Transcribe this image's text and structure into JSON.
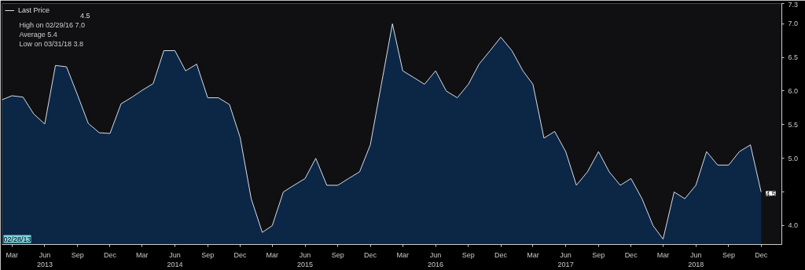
{
  "chart_data": {
    "type": "area",
    "x": [
      "2013-02",
      "2013-03",
      "2013-04",
      "2013-05",
      "2013-06",
      "2013-07",
      "2013-08",
      "2013-09",
      "2013-10",
      "2013-11",
      "2013-12",
      "2014-01",
      "2014-02",
      "2014-03",
      "2014-04",
      "2014-05",
      "2014-06",
      "2014-07",
      "2014-08",
      "2014-09",
      "2014-10",
      "2014-11",
      "2014-12",
      "2015-01",
      "2015-02",
      "2015-03",
      "2015-04",
      "2015-05",
      "2015-06",
      "2015-07",
      "2015-08",
      "2015-09",
      "2015-10",
      "2015-11",
      "2015-12",
      "2016-01",
      "2016-02",
      "2016-03",
      "2016-04",
      "2016-05",
      "2016-06",
      "2016-07",
      "2016-08",
      "2016-09",
      "2016-10",
      "2016-11",
      "2016-12",
      "2017-01",
      "2017-02",
      "2017-03",
      "2017-04",
      "2017-05",
      "2017-06",
      "2017-07",
      "2017-08",
      "2017-09",
      "2017-10",
      "2017-11",
      "2017-12",
      "2018-01",
      "2018-02",
      "2018-03",
      "2018-04",
      "2018-05",
      "2018-06",
      "2018-07",
      "2018-08",
      "2018-09",
      "2018-10",
      "2018-11",
      "2018-12"
    ],
    "series": [
      {
        "name": "Last Price",
        "color": "#d9dde3",
        "values": [
          5.87,
          5.93,
          5.91,
          5.66,
          5.51,
          6.38,
          6.36,
          5.94,
          5.52,
          5.38,
          5.37,
          5.81,
          5.91,
          6.01,
          6.11,
          6.6,
          6.6,
          6.3,
          6.4,
          5.9,
          5.9,
          5.8,
          5.31,
          4.4,
          3.9,
          4.0,
          4.5,
          4.6,
          4.7,
          5.0,
          4.6,
          4.6,
          4.7,
          4.8,
          5.2,
          6.1,
          7.0,
          6.3,
          6.2,
          6.1,
          6.3,
          6.0,
          5.9,
          6.1,
          6.4,
          6.6,
          6.8,
          6.6,
          6.3,
          6.1,
          5.3,
          5.4,
          5.1,
          4.6,
          4.8,
          5.1,
          4.8,
          4.6,
          4.7,
          4.4,
          4.0,
          3.8,
          4.5,
          4.4,
          4.6,
          5.1,
          4.9,
          4.9,
          5.1,
          5.2,
          4.5
        ]
      }
    ],
    "xlim": [
      "2013-02",
      "2019-01-28"
    ],
    "xticks": [
      {
        "value": "2013-03",
        "label": "Mar"
      },
      {
        "value": "2013-06",
        "label": "Jun\n2013"
      },
      {
        "value": "2013-09",
        "label": "Sep"
      },
      {
        "value": "2013-12",
        "label": "Dec"
      },
      {
        "value": "2014-03",
        "label": "Mar"
      },
      {
        "value": "2014-06",
        "label": "Jun\n2014"
      },
      {
        "value": "2014-09",
        "label": "Sep"
      },
      {
        "value": "2014-12",
        "label": "Dec"
      },
      {
        "value": "2015-03",
        "label": "Mar"
      },
      {
        "value": "2015-06",
        "label": "Jun\n2015"
      },
      {
        "value": "2015-09",
        "label": "Sep"
      },
      {
        "value": "2015-12",
        "label": "Dec"
      },
      {
        "value": "2016-03",
        "label": "Mar"
      },
      {
        "value": "2016-06",
        "label": "Jun\n2016"
      },
      {
        "value": "2016-09",
        "label": "Sep"
      },
      {
        "value": "2016-12",
        "label": "Dec"
      },
      {
        "value": "2017-03",
        "label": "Mar"
      },
      {
        "value": "2017-06",
        "label": "Jun\n2017"
      },
      {
        "value": "2017-09",
        "label": "Sep"
      },
      {
        "value": "2017-12",
        "label": "Dec"
      },
      {
        "value": "2018-03",
        "label": "Mar"
      },
      {
        "value": "2018-06",
        "label": "Jun\n2018"
      },
      {
        "value": "2018-09",
        "label": "Sep"
      },
      {
        "value": "2018-12",
        "label": "Dec"
      }
    ],
    "ylim": [
      3.72,
      7.3
    ],
    "yticks": [
      {
        "value": 4.0,
        "label": "4.0"
      },
      {
        "value": 4.5,
        "label": null
      },
      {
        "value": 5.0,
        "label": "5.0"
      },
      {
        "value": 5.5,
        "label": "5.5"
      },
      {
        "value": 6.0,
        "label": "6.0"
      },
      {
        "value": 6.5,
        "label": "6.5"
      },
      {
        "value": 7.0,
        "label": "7.0"
      },
      {
        "value": 7.3,
        "label": "7.3"
      }
    ],
    "annotations": [
      "4.5",
      "High on 02/29/16 7.0",
      "Average 5.4",
      "Low on 03/31/18 3.8",
      "02/28/13",
      {
        "text": "4.5",
        "x": "2018-12",
        "y": 4.5
      }
    ],
    "legend": "top left",
    "grid": false
  }
}
